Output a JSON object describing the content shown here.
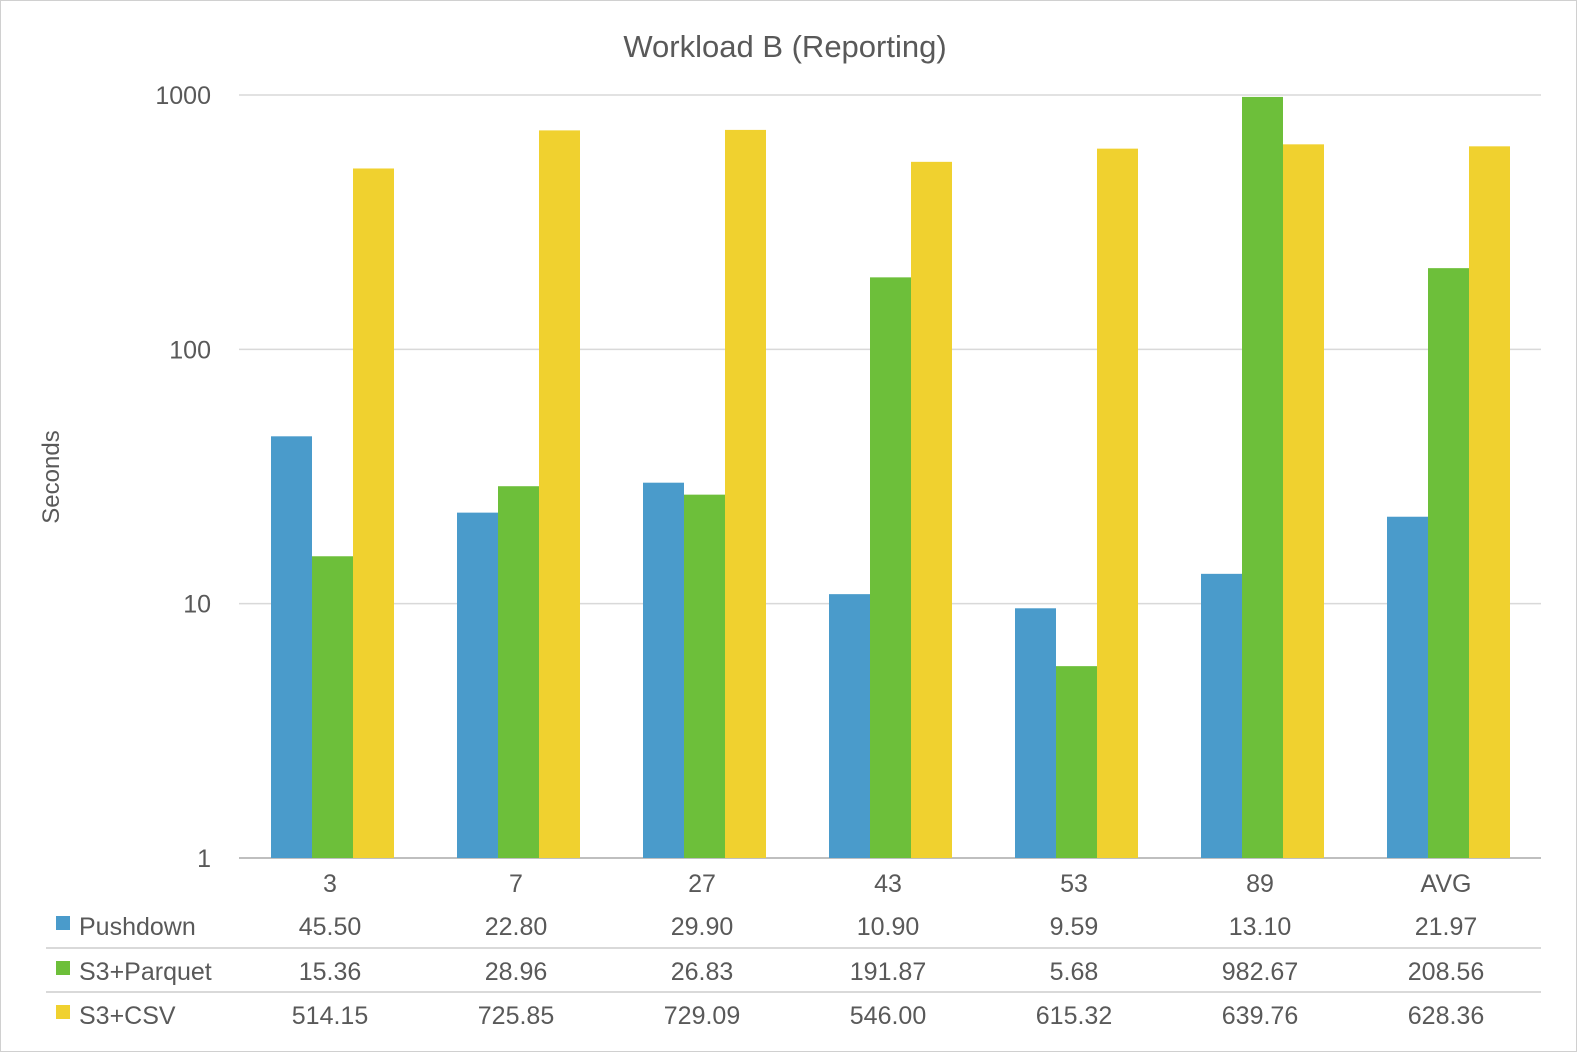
{
  "chart_data": {
    "type": "bar",
    "title": "Workload B (Reporting)",
    "xlabel": "",
    "ylabel": "Seconds",
    "yscale": "log",
    "ylim": [
      1,
      1000
    ],
    "yticks": [
      "1",
      "10",
      "100",
      "1000"
    ],
    "grid": true,
    "legend": "data-table-left",
    "categories": [
      "3",
      "7",
      "27",
      "43",
      "53",
      "89",
      "AVG"
    ],
    "series": [
      {
        "name": "Pushdown",
        "color": "#4a9bcb",
        "values": [
          45.5,
          22.8,
          29.9,
          10.9,
          9.59,
          13.1,
          21.97
        ],
        "labels": [
          "45.50",
          "22.80",
          "29.90",
          "10.90",
          "9.59",
          "13.10",
          "21.97"
        ]
      },
      {
        "name": "S3+Parquet",
        "color": "#6dbf3a",
        "values": [
          15.36,
          28.96,
          26.83,
          191.87,
          5.68,
          982.67,
          208.56
        ],
        "labels": [
          "15.36",
          "28.96",
          "26.83",
          "191.87",
          "5.68",
          "982.67",
          "208.56"
        ]
      },
      {
        "name": "S3+CSV",
        "color": "#f0d12f",
        "values": [
          514.15,
          725.85,
          729.09,
          546.0,
          615.32,
          639.76,
          628.36
        ],
        "labels": [
          "514.15",
          "725.85",
          "729.09",
          "546.00",
          "615.32",
          "639.76",
          "628.36"
        ]
      }
    ]
  }
}
